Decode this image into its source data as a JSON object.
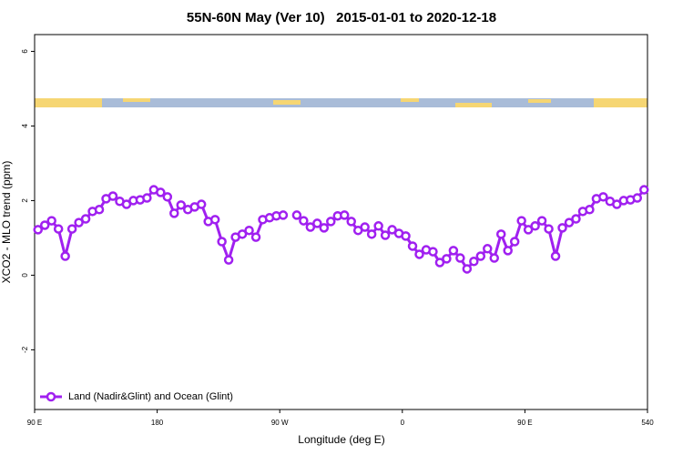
{
  "chart_data": {
    "type": "line",
    "title": "55N-60N May (Ver 10)   2015-01-01 to 2020-12-18",
    "x_label": "Longitude (deg E)",
    "y_label": "XCO2 - MLO trend (ppm)",
    "x": [
      92.5,
      97.5,
      102.5,
      107.5,
      112.5,
      117.5,
      122.5,
      127.5,
      132.5,
      137.5,
      142.5,
      147.5,
      152.5,
      157.5,
      162.5,
      167.5,
      172.5,
      177.5,
      182.5,
      187.5,
      192.5,
      197.5,
      202.5,
      207.5,
      212.5,
      217.5,
      222.5,
      227.5,
      232.5,
      237.5,
      242.5,
      247.5,
      252.5,
      257.5,
      262.5,
      267.5,
      272.5,
      277.5,
      282.5,
      287.5,
      292.5,
      297.5,
      302.5,
      307.5,
      312.5,
      317.5,
      322.5,
      327.5,
      332.5,
      337.5,
      342.5,
      347.5,
      352.5,
      357.5,
      362.5,
      367.5,
      372.5,
      377.5,
      382.5,
      387.5,
      392.5,
      397.5,
      402.5,
      407.5,
      412.5,
      417.5,
      422.5,
      427.5,
      432.5,
      437.5,
      442.5,
      447.5,
      452.5,
      457.5,
      462.5,
      467.5,
      472.5,
      477.5,
      482.5,
      487.5,
      492.5,
      497.5,
      502.5,
      507.5,
      512.5,
      517.5,
      522.5,
      527.5,
      532.5,
      537.5
    ],
    "series": [
      {
        "name": "Land (Nadir&Glint) and Ocean (Glint)",
        "color": "#a020f0",
        "values": [
          1.22,
          1.34,
          1.46,
          1.24,
          0.51,
          1.24,
          1.41,
          1.51,
          1.71,
          1.76,
          2.05,
          2.12,
          1.98,
          1.9,
          2.0,
          2.02,
          2.07,
          2.29,
          2.22,
          2.1,
          1.66,
          1.88,
          1.76,
          1.83,
          1.9,
          1.44,
          1.49,
          0.9,
          0.41,
          1.02,
          1.1,
          1.2,
          1.02,
          1.49,
          1.54,
          1.59,
          1.61,
          null,
          1.61,
          1.46,
          1.29,
          1.39,
          1.27,
          1.44,
          1.59,
          1.61,
          1.44,
          1.2,
          1.29,
          1.1,
          1.32,
          1.07,
          1.22,
          1.12,
          1.05,
          0.78,
          0.56,
          0.68,
          0.63,
          0.34,
          0.44,
          0.66,
          0.46,
          0.17,
          0.37,
          0.51,
          0.71,
          0.46,
          1.1,
          0.66,
          0.9,
          1.46,
          1.22,
          1.32,
          1.46,
          1.24,
          0.51,
          1.27,
          1.41,
          1.51,
          1.71,
          1.76,
          2.05,
          2.1,
          1.98,
          1.9,
          2.0,
          2.02,
          2.07,
          2.29
        ]
      }
    ],
    "xlim": [
      90,
      540
    ],
    "xticks": [
      {
        "value": 90,
        "label": "90 E"
      },
      180,
      {
        "value": 270,
        "label": "90 W"
      },
      {
        "value": 360,
        "label": "0"
      },
      {
        "value": 450,
        "label": "90 E"
      },
      540
    ],
    "ylim": [
      -3.6,
      6.45
    ],
    "yticks": [
      6,
      4,
      2,
      0,
      -2
    ],
    "legend": "bottom-left"
  }
}
